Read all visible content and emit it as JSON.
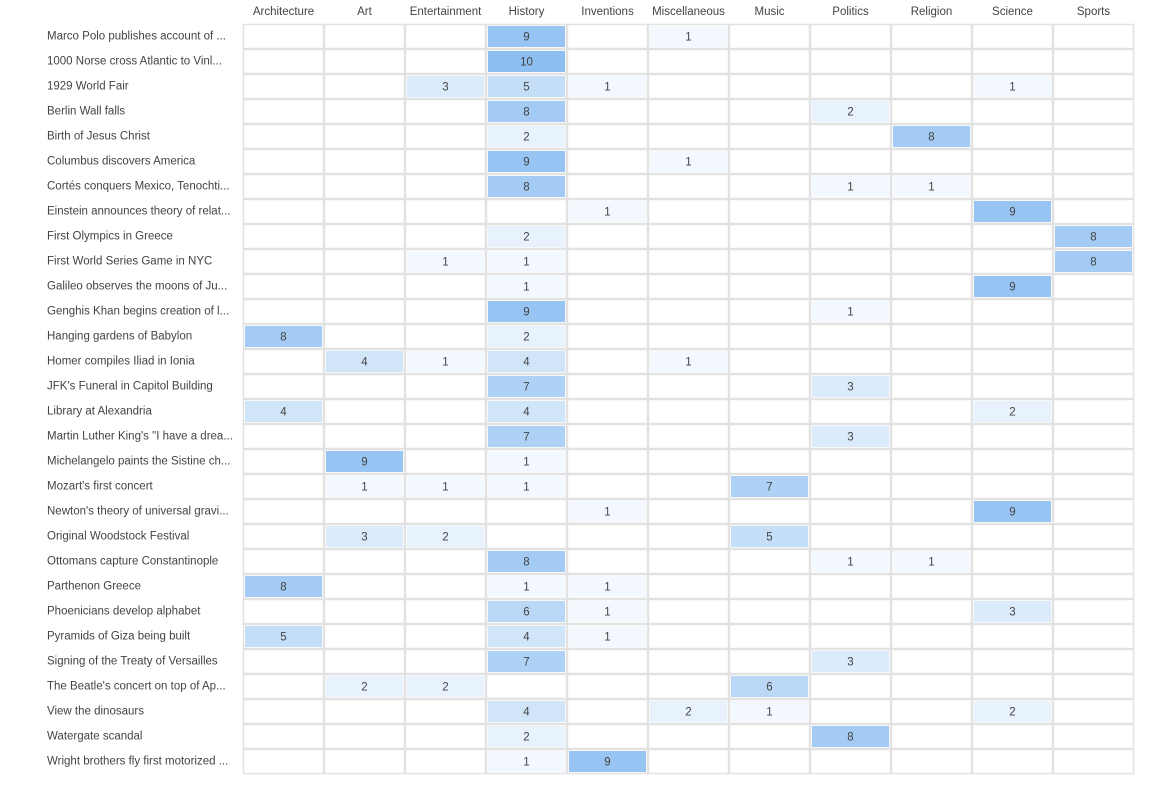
{
  "chart_data": {
    "type": "heatmap",
    "columns": [
      "Architecture",
      "Art",
      "Entertainment",
      "History",
      "Inventions",
      "Miscellaneous",
      "Music",
      "Politics",
      "Religion",
      "Science",
      "Sports"
    ],
    "rows": [
      "Marco Polo publishes account of ...",
      "1000 Norse cross Atlantic to Vinl...",
      "1929 World Fair",
      "Berlin Wall falls",
      "Birth of Jesus Christ",
      "Columbus discovers America",
      "Cortés conquers Mexico, Tenochti...",
      "Einstein announces theory of relat...",
      "First Olympics in Greece",
      "First World Series Game in NYC",
      "Galileo observes the moons of Ju...",
      "Genghis Khan begins creation of l...",
      "Hanging gardens of Babylon",
      "Homer compiles Iliad in Ionia",
      "JFK's Funeral in Capitol Building",
      "Library at Alexandria",
      "Martin Luther King's \"I have a drea...",
      "Michelangelo paints the Sistine ch...",
      "Mozart's first concert",
      "Newton's theory of universal gravi...",
      "Original Woodstock Festival",
      "Ottomans capture Constantinople",
      "Parthenon Greece",
      "Phoenicians develop alphabet",
      "Pyramids of Giza being built",
      "Signing of the Treaty of Versailles",
      "The Beatle's concert on top of Ap...",
      "View the dinosaurs",
      "Watergate scandal",
      "Wright brothers fly first motorized ..."
    ],
    "values": [
      [
        null,
        null,
        null,
        9,
        null,
        1,
        null,
        null,
        null,
        null,
        null
      ],
      [
        null,
        null,
        null,
        10,
        null,
        null,
        null,
        null,
        null,
        null,
        null
      ],
      [
        null,
        null,
        3,
        5,
        1,
        null,
        null,
        null,
        null,
        1,
        null
      ],
      [
        null,
        null,
        null,
        8,
        null,
        null,
        null,
        2,
        null,
        null,
        null
      ],
      [
        null,
        null,
        null,
        2,
        null,
        null,
        null,
        null,
        8,
        null,
        null
      ],
      [
        null,
        null,
        null,
        9,
        null,
        1,
        null,
        null,
        null,
        null,
        null
      ],
      [
        null,
        null,
        null,
        8,
        null,
        null,
        null,
        1,
        1,
        null,
        null
      ],
      [
        null,
        null,
        null,
        null,
        1,
        null,
        null,
        null,
        null,
        9,
        null
      ],
      [
        null,
        null,
        null,
        2,
        null,
        null,
        null,
        null,
        null,
        null,
        8
      ],
      [
        null,
        null,
        1,
        1,
        null,
        null,
        null,
        null,
        null,
        null,
        8
      ],
      [
        null,
        null,
        null,
        1,
        null,
        null,
        null,
        null,
        null,
        9,
        null
      ],
      [
        null,
        null,
        null,
        9,
        null,
        null,
        null,
        1,
        null,
        null,
        null
      ],
      [
        8,
        null,
        null,
        2,
        null,
        null,
        null,
        null,
        null,
        null,
        null
      ],
      [
        null,
        4,
        1,
        4,
        null,
        1,
        null,
        null,
        null,
        null,
        null
      ],
      [
        null,
        null,
        null,
        7,
        null,
        null,
        null,
        3,
        null,
        null,
        null
      ],
      [
        4,
        null,
        null,
        4,
        null,
        null,
        null,
        null,
        null,
        2,
        null
      ],
      [
        null,
        null,
        null,
        7,
        null,
        null,
        null,
        3,
        null,
        null,
        null
      ],
      [
        null,
        9,
        null,
        1,
        null,
        null,
        null,
        null,
        null,
        null,
        null
      ],
      [
        null,
        1,
        1,
        1,
        null,
        null,
        7,
        null,
        null,
        null,
        null
      ],
      [
        null,
        null,
        null,
        null,
        1,
        null,
        null,
        null,
        null,
        9,
        null
      ],
      [
        null,
        3,
        2,
        null,
        null,
        null,
        5,
        null,
        null,
        null,
        null
      ],
      [
        null,
        null,
        null,
        8,
        null,
        null,
        null,
        1,
        1,
        null,
        null
      ],
      [
        8,
        null,
        null,
        1,
        1,
        null,
        null,
        null,
        null,
        null,
        null
      ],
      [
        null,
        null,
        null,
        6,
        1,
        null,
        null,
        null,
        null,
        3,
        null
      ],
      [
        5,
        null,
        null,
        4,
        1,
        null,
        null,
        null,
        null,
        null,
        null
      ],
      [
        null,
        null,
        null,
        7,
        null,
        null,
        null,
        3,
        null,
        null,
        null
      ],
      [
        null,
        2,
        2,
        null,
        null,
        null,
        6,
        null,
        null,
        null,
        null
      ],
      [
        null,
        null,
        null,
        4,
        null,
        2,
        1,
        null,
        null,
        2,
        null
      ],
      [
        null,
        null,
        null,
        2,
        null,
        null,
        null,
        8,
        null,
        null,
        null
      ],
      [
        null,
        null,
        null,
        1,
        9,
        null,
        null,
        null,
        null,
        null,
        null
      ]
    ],
    "color_low": "#f3f8fe",
    "color_high": "#8cbef0"
  }
}
